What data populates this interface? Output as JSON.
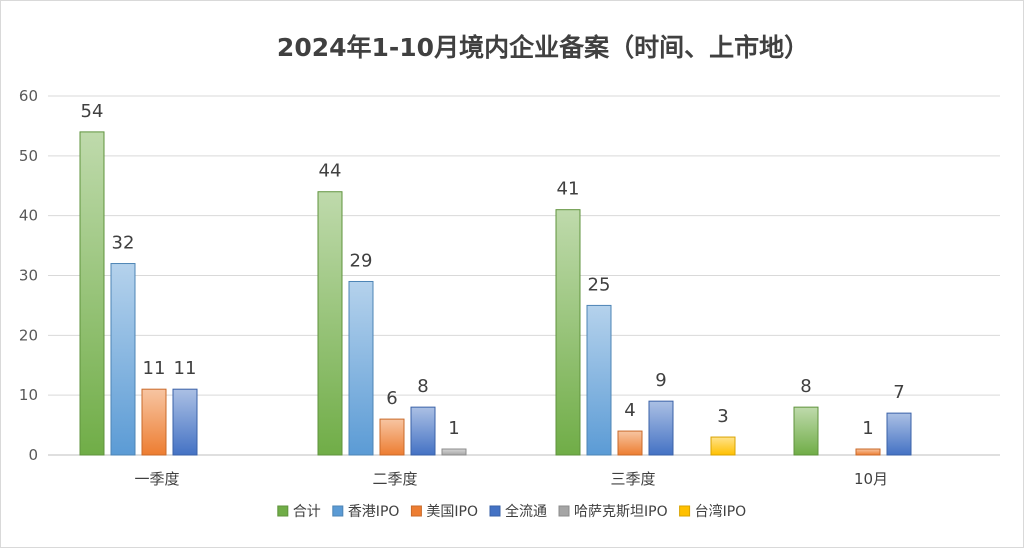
{
  "chart_data": {
    "type": "bar",
    "title": "2024年1-10月境内企业备案（时间、上市地）",
    "categories": [
      "一季度",
      "二季度",
      "三季度",
      "10月"
    ],
    "series": [
      {
        "name": "合计",
        "values": [
          54,
          44,
          41,
          8
        ],
        "color": "#70ad47"
      },
      {
        "name": "香港IPO",
        "values": [
          32,
          29,
          25,
          null
        ],
        "color": "#5b9bd5"
      },
      {
        "name": "美国IPO",
        "values": [
          11,
          6,
          4,
          1
        ],
        "color": "#ed7d31"
      },
      {
        "name": "全流通",
        "values": [
          11,
          8,
          9,
          7
        ],
        "color": "#4472c4"
      },
      {
        "name": "哈萨克斯坦IPO",
        "values": [
          null,
          1,
          null,
          null
        ],
        "color": "#a5a5a5"
      },
      {
        "name": "台湾IPO",
        "values": [
          null,
          null,
          3,
          null
        ],
        "color": "#ffc000"
      }
    ],
    "ylim": [
      0,
      60
    ],
    "yticks": [
      0,
      10,
      20,
      30,
      40,
      50,
      60
    ],
    "grid": true,
    "legend_position": "bottom",
    "data_labels": true
  }
}
